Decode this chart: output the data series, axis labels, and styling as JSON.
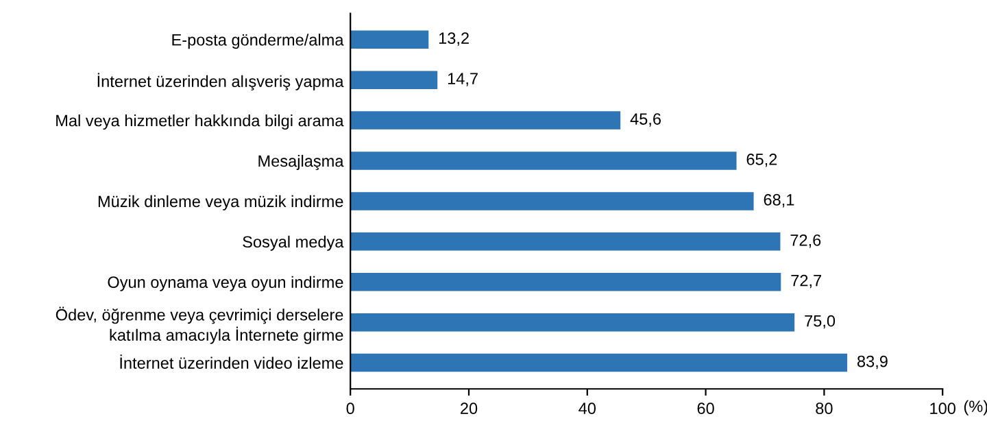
{
  "chart_data": {
    "type": "bar",
    "orientation": "horizontal",
    "xlabel": "(%)",
    "categories": [
      "E-posta gönderme/alma",
      "İnternet üzerinden alışveriş yapma",
      "Mal veya hizmetler hakkında bilgi arama",
      "Mesajlaşma",
      "Müzik dinleme veya müzik indirme",
      "Sosyal medya",
      "Oyun oynama veya oyun indirme",
      "Ödev, öğrenme veya çevrimiçi derselere\nkatılma amacıyla İnternete girme",
      "İnternet üzerinden video izleme"
    ],
    "values": [
      13.2,
      14.7,
      45.6,
      65.2,
      68.1,
      72.6,
      72.7,
      75.0,
      83.9
    ],
    "value_labels": [
      "13,2",
      "14,7",
      "45,6",
      "65,2",
      "68,1",
      "72,6",
      "72,7",
      "75,0",
      "83,9"
    ],
    "color": "#2e75b6",
    "xlim": [
      0,
      100
    ],
    "xticks": [
      0,
      20,
      40,
      60,
      80,
      100
    ],
    "grid": false,
    "legend": false
  }
}
